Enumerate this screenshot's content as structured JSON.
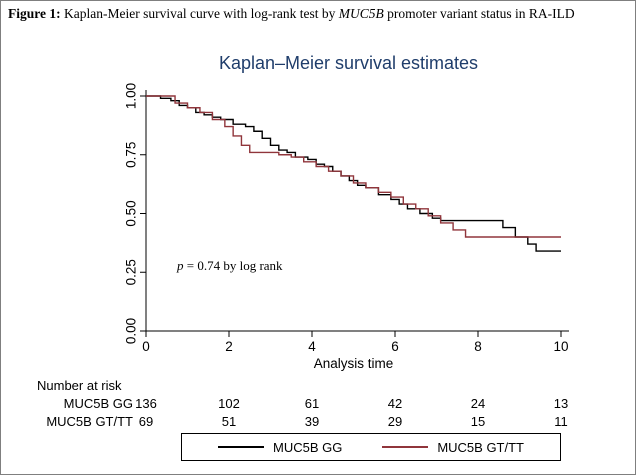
{
  "figure_caption": {
    "label": "Figure 1:",
    "pre_italic": " Kaplan-Meier survival curve with log-rank test by ",
    "italic": "MUC5B",
    "post_italic": " promoter variant status in RA-ILD"
  },
  "chart_data": {
    "type": "line",
    "subtype": "kaplan-meier-step",
    "title": "Kaplan–Meier survival estimates",
    "title_color": "#1f3d6b",
    "xlabel": "Analysis time",
    "xlim": [
      0,
      10
    ],
    "ylim": [
      0,
      1
    ],
    "xticks": [
      0,
      2,
      4,
      6,
      8,
      10
    ],
    "ytick_labels": [
      "0.00",
      "0.25",
      "0.50",
      "0.75",
      "1.00"
    ],
    "ytick_values": [
      0,
      0.25,
      0.5,
      0.75,
      1
    ],
    "grid": "off",
    "annotation": {
      "italic": "p",
      "text": " = 0.74 by log rank"
    },
    "series": [
      {
        "name": "MUC5B GG",
        "color": "#000000",
        "points": [
          [
            0,
            1.0
          ],
          [
            0.35,
            0.99
          ],
          [
            0.6,
            0.98
          ],
          [
            0.8,
            0.96
          ],
          [
            1.0,
            0.95
          ],
          [
            1.2,
            0.93
          ],
          [
            1.4,
            0.92
          ],
          [
            1.6,
            0.91
          ],
          [
            1.8,
            0.9
          ],
          [
            2.1,
            0.88
          ],
          [
            2.4,
            0.87
          ],
          [
            2.6,
            0.85
          ],
          [
            2.8,
            0.82
          ],
          [
            3.0,
            0.79
          ],
          [
            3.2,
            0.77
          ],
          [
            3.4,
            0.76
          ],
          [
            3.6,
            0.74
          ],
          [
            3.9,
            0.73
          ],
          [
            4.1,
            0.71
          ],
          [
            4.3,
            0.7
          ],
          [
            4.5,
            0.68
          ],
          [
            4.7,
            0.66
          ],
          [
            4.9,
            0.64
          ],
          [
            5.1,
            0.62
          ],
          [
            5.3,
            0.61
          ],
          [
            5.6,
            0.58
          ],
          [
            5.9,
            0.56
          ],
          [
            6.1,
            0.54
          ],
          [
            6.3,
            0.52
          ],
          [
            6.6,
            0.5
          ],
          [
            6.9,
            0.48
          ],
          [
            7.1,
            0.47
          ],
          [
            8.6,
            0.44
          ],
          [
            8.9,
            0.4
          ],
          [
            9.2,
            0.37
          ],
          [
            9.4,
            0.34
          ],
          [
            10,
            0.34
          ]
        ]
      },
      {
        "name": "MUC5B GT/TT",
        "color": "#90353B",
        "points": [
          [
            0,
            1.0
          ],
          [
            0.7,
            0.97
          ],
          [
            1.0,
            0.95
          ],
          [
            1.3,
            0.93
          ],
          [
            1.6,
            0.9
          ],
          [
            1.9,
            0.87
          ],
          [
            2.1,
            0.83
          ],
          [
            2.3,
            0.79
          ],
          [
            2.5,
            0.76
          ],
          [
            3.2,
            0.75
          ],
          [
            3.5,
            0.74
          ],
          [
            3.8,
            0.72
          ],
          [
            4.1,
            0.7
          ],
          [
            4.4,
            0.68
          ],
          [
            4.7,
            0.66
          ],
          [
            5.0,
            0.63
          ],
          [
            5.3,
            0.61
          ],
          [
            5.6,
            0.59
          ],
          [
            5.9,
            0.57
          ],
          [
            6.2,
            0.54
          ],
          [
            6.5,
            0.52
          ],
          [
            6.8,
            0.49
          ],
          [
            7.1,
            0.46
          ],
          [
            7.4,
            0.43
          ],
          [
            7.7,
            0.4
          ],
          [
            10,
            0.4
          ]
        ]
      }
    ]
  },
  "risk_table": {
    "header": "Number at risk",
    "times": [
      0,
      2,
      4,
      6,
      8,
      10
    ],
    "rows": [
      {
        "label": "MUC5B GG",
        "counts": [
          136,
          102,
          61,
          42,
          24,
          13
        ]
      },
      {
        "label": "MUC5B GT/TT",
        "counts": [
          69,
          51,
          39,
          29,
          15,
          11
        ]
      }
    ]
  },
  "legend": {
    "items": [
      {
        "label": "MUC5B GG",
        "color": "#000000"
      },
      {
        "label": "MUC5B GT/TT",
        "color": "#90353B"
      }
    ]
  }
}
